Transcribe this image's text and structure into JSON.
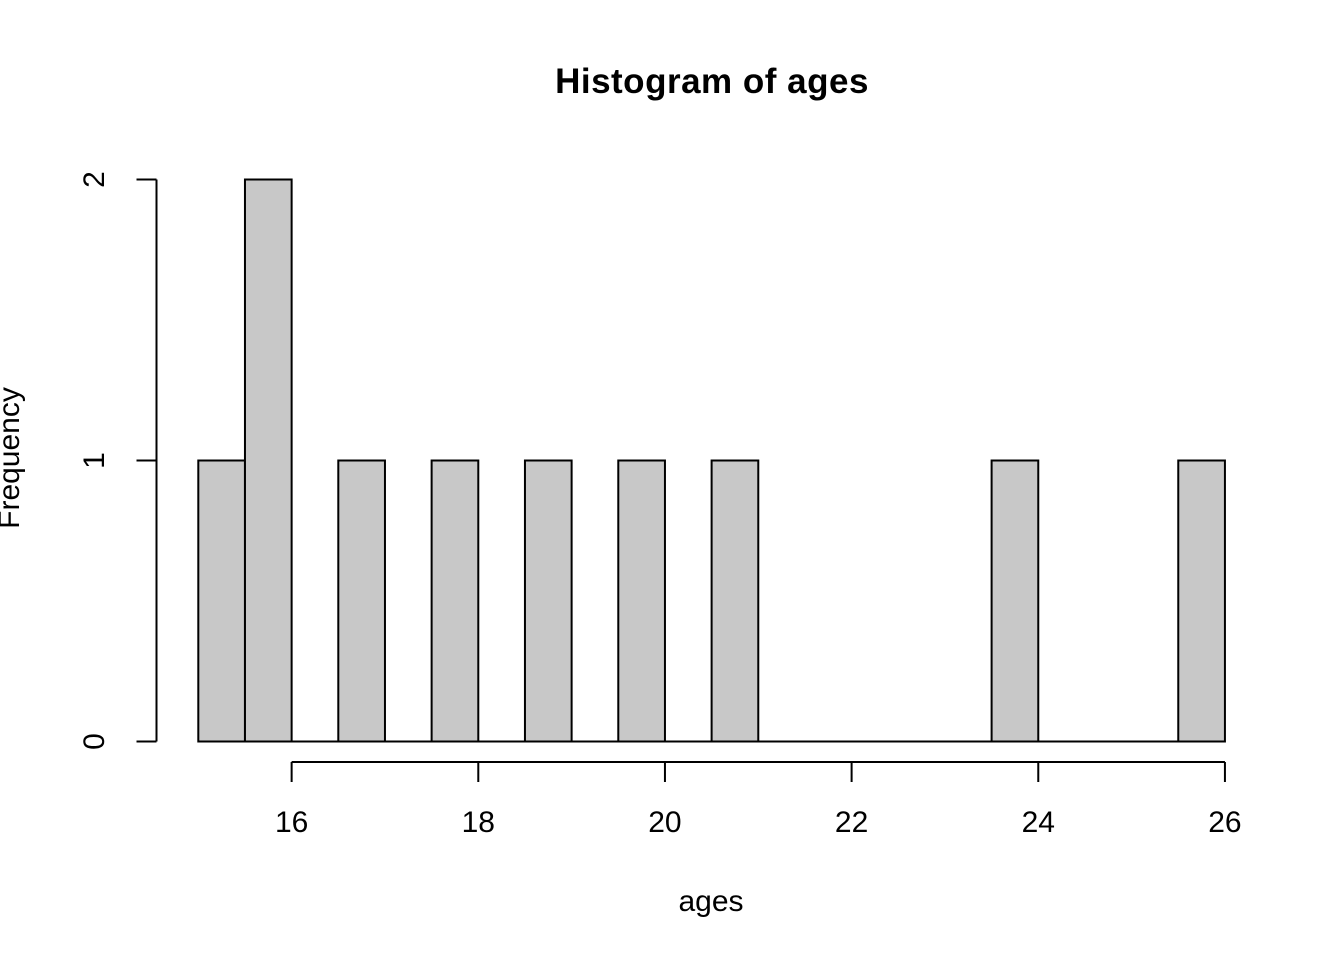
{
  "figure": {
    "background": "#ffffff",
    "text_color": "#000000"
  },
  "chart_data": {
    "type": "bar",
    "subtype": "histogram",
    "title": "Histogram of ages",
    "xlabel": "ages",
    "ylabel": "Frequency",
    "xlim": [
      15,
      26
    ],
    "ylim": [
      0,
      2
    ],
    "bin_start": 15,
    "bin_width": 0.5,
    "bin_edges": [
      15,
      15.5,
      16,
      16.5,
      17,
      17.5,
      18,
      18.5,
      19,
      19.5,
      20,
      20.5,
      21,
      21.5,
      22,
      22.5,
      23,
      23.5,
      24,
      24.5,
      25,
      25.5,
      26
    ],
    "counts": [
      1,
      2,
      0,
      1,
      0,
      1,
      0,
      1,
      0,
      1,
      0,
      1,
      0,
      0,
      0,
      0,
      0,
      1,
      0,
      0,
      0,
      1
    ],
    "nonzero_bins": [
      {
        "from": 15.0,
        "to": 15.5,
        "count": 1
      },
      {
        "from": 15.5,
        "to": 16.0,
        "count": 2
      },
      {
        "from": 16.5,
        "to": 17.0,
        "count": 1
      },
      {
        "from": 17.5,
        "to": 18.0,
        "count": 1
      },
      {
        "from": 18.5,
        "to": 19.0,
        "count": 1
      },
      {
        "from": 19.5,
        "to": 20.0,
        "count": 1
      },
      {
        "from": 20.5,
        "to": 21.0,
        "count": 1
      },
      {
        "from": 23.5,
        "to": 24.0,
        "count": 1
      },
      {
        "from": 25.5,
        "to": 26.0,
        "count": 1
      }
    ],
    "x_ticks": [
      16,
      18,
      20,
      22,
      24,
      26
    ],
    "y_ticks": [
      0,
      1,
      2
    ],
    "grid": false,
    "legend": null,
    "bar_fill": "#C8C8C8",
    "bar_stroke": "#000000",
    "axis_color": "#000000"
  }
}
